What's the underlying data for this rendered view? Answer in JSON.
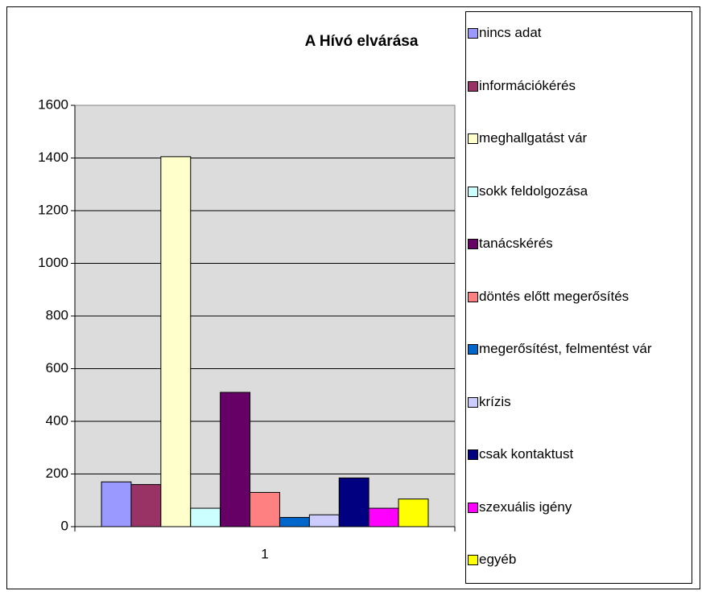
{
  "chart_data": {
    "type": "bar",
    "title": "A Hívó elvárása",
    "categories": [
      "1"
    ],
    "series": [
      {
        "name": "nincs adat",
        "color": "#9999ff",
        "values": [
          170
        ]
      },
      {
        "name": "információkérés",
        "color": "#993366",
        "values": [
          160
        ]
      },
      {
        "name": "meghallgatást vár",
        "color": "#ffffcc",
        "values": [
          1405
        ]
      },
      {
        "name": "sokk feldolgozása",
        "color": "#ccffff",
        "values": [
          70
        ]
      },
      {
        "name": "tanácskérés",
        "color": "#660066",
        "values": [
          510
        ]
      },
      {
        "name": "döntés előtt megerősítés",
        "color": "#ff8080",
        "values": [
          130
        ]
      },
      {
        "name": "megerősítést, felmentést vár",
        "color": "#0066cc",
        "values": [
          35
        ]
      },
      {
        "name": "krízis",
        "color": "#ccccff",
        "values": [
          45
        ]
      },
      {
        "name": "csak kontaktust",
        "color": "#000080",
        "values": [
          185
        ]
      },
      {
        "name": "szexuális igény",
        "color": "#ff00ff",
        "values": [
          70
        ]
      },
      {
        "name": "egyéb",
        "color": "#ffff00",
        "values": [
          105
        ]
      }
    ],
    "ylim": [
      0,
      1600
    ],
    "yticks": [
      0,
      200,
      400,
      600,
      800,
      1000,
      1200,
      1400,
      1600
    ],
    "grid": true,
    "legend": "right"
  }
}
